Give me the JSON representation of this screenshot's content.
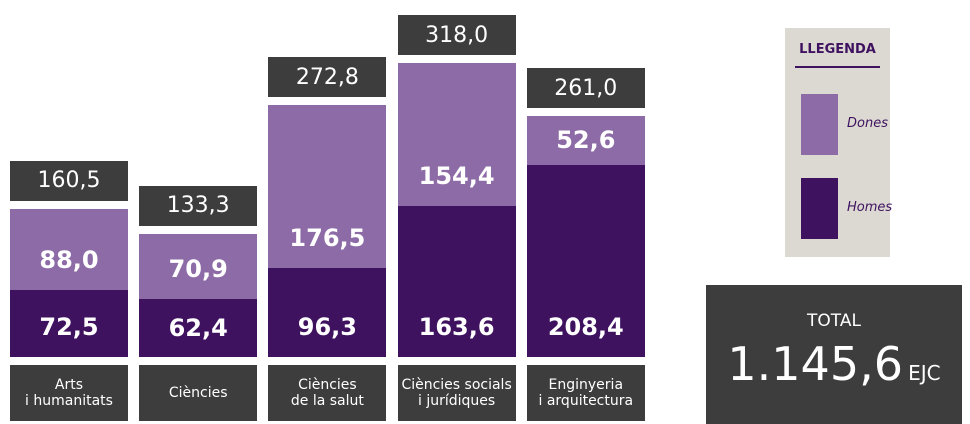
{
  "chart_data": {
    "type": "bar",
    "stacked": true,
    "categories": [
      "Arts\ni humanitats",
      "Ciències",
      "Ciències\nde la salut",
      "Ciències socials\ni jurídiques",
      "Enginyeria\ni arquitectura"
    ],
    "series": [
      {
        "name": "Homes",
        "color": "#3f1260",
        "values": [
          72.5,
          62.4,
          96.3,
          163.6,
          208.4
        ],
        "value_labels": [
          "72,5",
          "62,4",
          "96,3",
          "163,6",
          "208,4"
        ]
      },
      {
        "name": "Dones",
        "color": "#8c6ba6",
        "values": [
          88.0,
          70.9,
          176.5,
          154.4,
          52.6
        ],
        "value_labels": [
          "88,0",
          "70,9",
          "176,5",
          "154,4",
          "52,6"
        ]
      }
    ],
    "totals": [
      160.5,
      133.3,
      272.8,
      318.0,
      261.0
    ],
    "total_labels": [
      "160,5",
      "133,3",
      "272,8",
      "318,0",
      "261,0"
    ],
    "legend_title": "LLEGENDA",
    "summary": {
      "label": "TOTAL",
      "value": 1145.6,
      "value_label": "1.145,6",
      "unit": "EJC"
    }
  }
}
